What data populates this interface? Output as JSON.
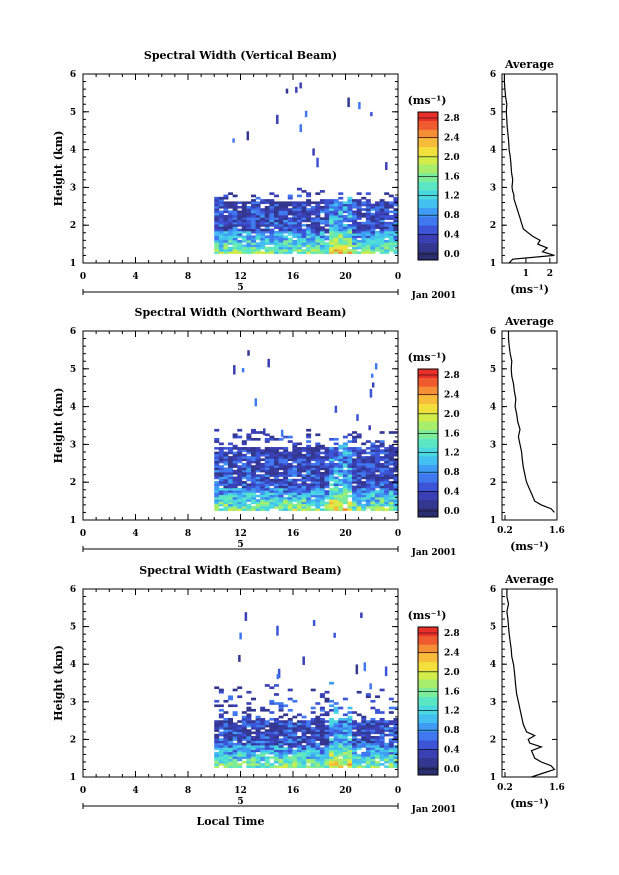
{
  "figure": {
    "date_label": "Jan 2001",
    "day_label": "5",
    "bottom_label": "Local Time"
  },
  "colorbar": {
    "unit_label": "(ms⁻¹)",
    "ticks": [
      "0.0",
      "0.4",
      "0.8",
      "1.2",
      "1.6",
      "2.0",
      "2.4",
      "2.8"
    ],
    "colors": [
      "#2b2f6f",
      "#34378f",
      "#3a3fb3",
      "#3c55d6",
      "#3f78ef",
      "#3f9cf4",
      "#43bff0",
      "#49d8e0",
      "#5be6c4",
      "#7cec9a",
      "#a7ee6c",
      "#d2ec4a",
      "#f3e03c",
      "#f7bc3a",
      "#f58e35",
      "#ef5a2f",
      "#e8302b"
    ]
  },
  "chart_data": [
    {
      "type": "heatmap",
      "title": "Spectral Width (Vertical Beam)",
      "xlabel": "",
      "ylabel": "Height (km)",
      "x_ticks": [
        "0",
        "4",
        "8",
        "12",
        "16",
        "20",
        "0"
      ],
      "y_ticks": [
        "1",
        "2",
        "3",
        "4",
        "5",
        "6"
      ],
      "xlim": [
        0,
        24
      ],
      "ylim": [
        1,
        6
      ],
      "colorbar_range": [
        0.0,
        2.9
      ],
      "data_window": {
        "time_start": 10,
        "height_range": [
          1.25,
          2.6
        ],
        "upper_layer_top": 3.0
      },
      "profile": {
        "title": "Average",
        "xlabel": "(ms⁻¹)",
        "x_ticks": [
          "1",
          "2"
        ],
        "y_ticks": [
          "1",
          "2",
          "3",
          "4",
          "5",
          "6"
        ],
        "height": [
          1.0,
          1.1,
          1.2,
          1.3,
          1.4,
          1.5,
          1.6,
          1.7,
          1.8,
          1.9,
          2.0,
          2.1,
          2.2,
          2.3,
          2.4,
          2.5,
          2.6,
          2.7,
          2.8,
          2.9,
          3.0,
          3.2,
          3.4,
          3.6,
          3.8,
          4.0,
          4.2,
          4.4,
          4.6,
          4.8,
          5.0,
          5.2,
          5.4,
          5.6,
          5.8,
          6.0
        ],
        "width": [
          0.3,
          0.45,
          2.2,
          1.7,
          1.9,
          1.5,
          1.6,
          1.3,
          1.1,
          0.9,
          0.85,
          0.8,
          0.75,
          0.7,
          0.65,
          0.6,
          0.55,
          0.5,
          0.5,
          0.45,
          0.42,
          0.45,
          0.4,
          0.38,
          0.35,
          0.3,
          0.28,
          0.25,
          0.22,
          0.2,
          0.18,
          0.2,
          0.15,
          0.12,
          0.1,
          0.1
        ]
      }
    },
    {
      "type": "heatmap",
      "title": "Spectral Width (Northward Beam)",
      "xlabel": "",
      "ylabel": "Height (km)",
      "x_ticks": [
        "0",
        "4",
        "8",
        "12",
        "16",
        "20",
        "0"
      ],
      "y_ticks": [
        "1",
        "2",
        "3",
        "4",
        "5",
        "6"
      ],
      "xlim": [
        0,
        24
      ],
      "ylim": [
        1,
        6
      ],
      "colorbar_range": [
        0.0,
        2.9
      ],
      "data_window": {
        "time_start": 10,
        "height_range": [
          1.25,
          2.9
        ],
        "upper_layer_top": 3.5
      },
      "profile": {
        "title": "Average",
        "xlabel": "(ms⁻¹)",
        "x_ticks": [
          "0.2",
          "1.6"
        ],
        "y_ticks": [
          "1",
          "2",
          "3",
          "4",
          "5",
          "6"
        ],
        "height": [
          1.2,
          1.3,
          1.4,
          1.5,
          1.6,
          1.7,
          1.8,
          1.9,
          2.0,
          2.1,
          2.2,
          2.4,
          2.6,
          2.8,
          3.0,
          3.2,
          3.4,
          3.6,
          3.8,
          4.0,
          4.2,
          4.4,
          4.6,
          4.8,
          5.0,
          5.2,
          5.4,
          5.6,
          5.8,
          6.0
        ],
        "width": [
          1.6,
          1.5,
          1.2,
          1.0,
          0.95,
          0.9,
          0.85,
          0.8,
          0.75,
          0.72,
          0.7,
          0.65,
          0.62,
          0.6,
          0.55,
          0.5,
          0.55,
          0.48,
          0.45,
          0.4,
          0.42,
          0.38,
          0.35,
          0.3,
          0.28,
          0.3,
          0.25,
          0.22,
          0.2,
          0.2
        ]
      }
    },
    {
      "type": "heatmap",
      "title": "Spectral Width (Eastward Beam)",
      "xlabel": "Local Time",
      "ylabel": "Height (km)",
      "x_ticks": [
        "0",
        "4",
        "8",
        "12",
        "16",
        "20",
        "0"
      ],
      "y_ticks": [
        "1",
        "2",
        "3",
        "4",
        "5",
        "6"
      ],
      "xlim": [
        0,
        24
      ],
      "ylim": [
        1,
        6
      ],
      "colorbar_range": [
        0.0,
        2.9
      ],
      "data_window": {
        "time_start": 10,
        "height_range": [
          1.25,
          2.5
        ],
        "upper_layer_top": 3.5
      },
      "profile": {
        "title": "Average",
        "xlabel": "(ms⁻¹)",
        "x_ticks": [
          "0.2",
          "1.6"
        ],
        "y_ticks": [
          "1",
          "2",
          "3",
          "4",
          "5",
          "6"
        ],
        "height": [
          1.0,
          1.2,
          1.3,
          1.4,
          1.5,
          1.6,
          1.7,
          1.8,
          1.9,
          2.0,
          2.1,
          2.2,
          2.3,
          2.4,
          2.6,
          2.8,
          3.0,
          3.2,
          3.4,
          3.6,
          3.8,
          4.0,
          4.2,
          4.4,
          4.6,
          4.8,
          5.0,
          5.2,
          5.4,
          5.6,
          5.8,
          6.0
        ],
        "width": [
          0.9,
          1.6,
          1.5,
          1.2,
          1.0,
          0.95,
          0.9,
          1.2,
          0.85,
          0.8,
          1.0,
          0.75,
          0.7,
          0.65,
          0.6,
          0.55,
          0.5,
          0.45,
          0.42,
          0.4,
          0.38,
          0.35,
          0.3,
          0.28,
          0.25,
          0.22,
          0.2,
          0.18,
          0.15,
          0.2,
          0.15,
          0.15
        ]
      }
    }
  ]
}
